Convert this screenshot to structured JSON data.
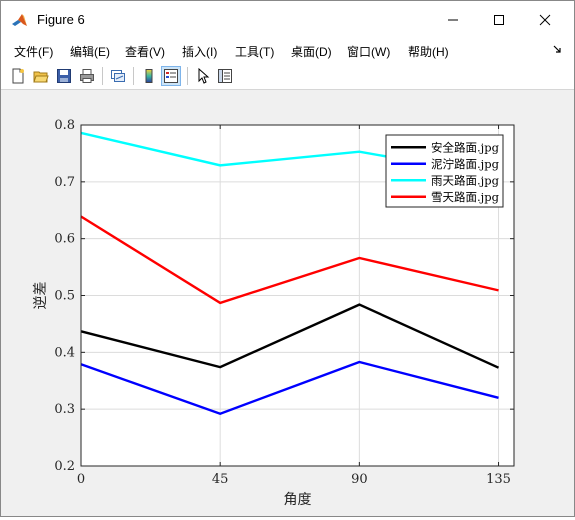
{
  "window": {
    "title": "Figure 6"
  },
  "menu": {
    "items": [
      {
        "label": "文件(F)"
      },
      {
        "label": "编辑(E)"
      },
      {
        "label": "查看(V)"
      },
      {
        "label": "插入(I)"
      },
      {
        "label": "工具(T)"
      },
      {
        "label": "桌面(D)"
      },
      {
        "label": "窗口(W)"
      },
      {
        "label": "帮助(H)"
      }
    ]
  },
  "toolbar": {
    "buttons": [
      {
        "icon": "new-figure-icon"
      },
      {
        "icon": "open-folder-icon"
      },
      {
        "icon": "save-icon"
      },
      {
        "icon": "print-icon"
      },
      {
        "icon": "link-plot-icon"
      },
      {
        "icon": "colorbar-icon"
      },
      {
        "icon": "legend-icon"
      },
      {
        "icon": "pointer-icon"
      },
      {
        "icon": "property-inspector-icon"
      }
    ]
  },
  "chart_data": {
    "type": "line",
    "title": "",
    "xlabel": "角度",
    "ylabel": "逆差",
    "x": [
      0,
      45,
      90,
      135
    ],
    "xlim": [
      0,
      140
    ],
    "ylim": [
      0.2,
      0.8
    ],
    "xticks": [
      "0",
      "45",
      "90",
      "135"
    ],
    "yticks": [
      "0.2",
      "0.3",
      "0.4",
      "0.5",
      "0.6",
      "0.7",
      "0.8"
    ],
    "grid": true,
    "legend_position": "top-right",
    "series": [
      {
        "name": "安全路面.jpg",
        "color": "#000000",
        "values": [
          0.437,
          0.374,
          0.484,
          0.373
        ]
      },
      {
        "name": "泥泞路面.jpg",
        "color": "#0000ff",
        "values": [
          0.379,
          0.292,
          0.383,
          0.32
        ]
      },
      {
        "name": "雨天路面.jpg",
        "color": "#00ffff",
        "values": [
          0.786,
          0.729,
          0.753,
          0.71
        ]
      },
      {
        "name": "雪天路面.jpg",
        "color": "#ff0000",
        "values": [
          0.639,
          0.487,
          0.566,
          0.509
        ]
      }
    ]
  }
}
